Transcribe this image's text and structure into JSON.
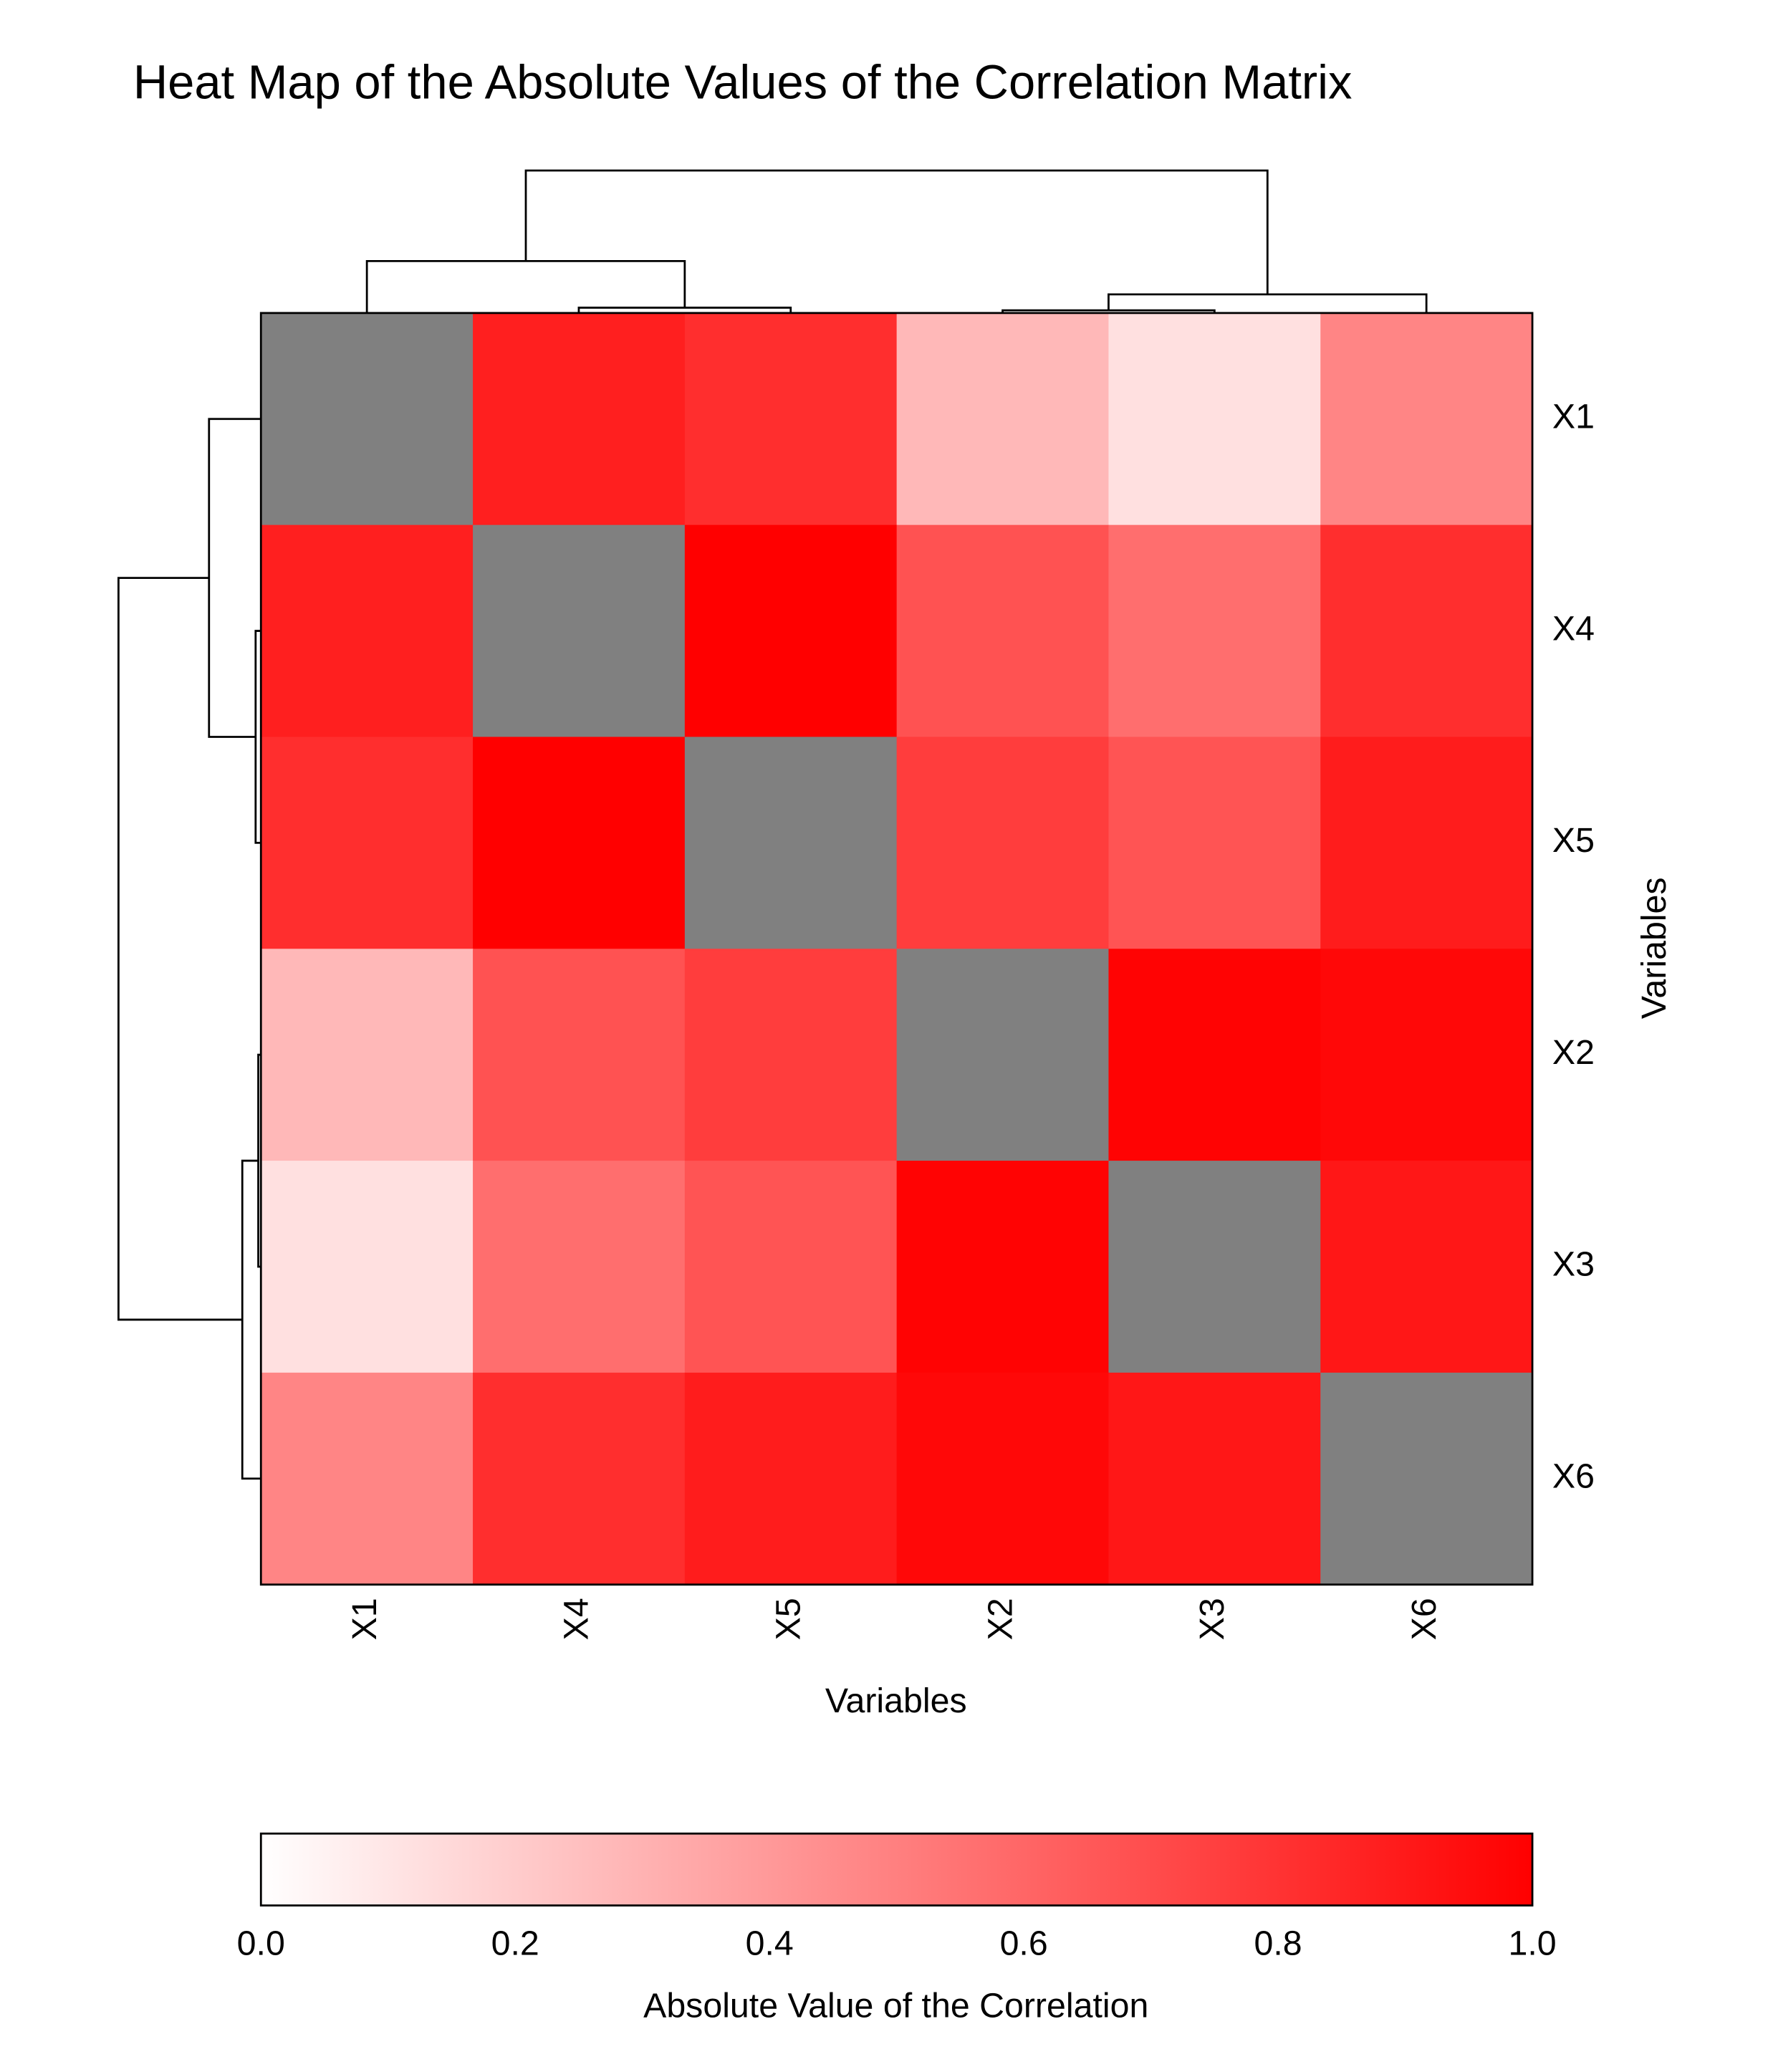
{
  "chart_data": {
    "type": "heatmap",
    "title": "Heat Map of the Absolute Values of the Correlation Matrix",
    "x_label": "Variables",
    "y_label": "Variables",
    "x_categories": [
      "X1",
      "X4",
      "X5",
      "X2",
      "X3",
      "X6"
    ],
    "y_categories": [
      "X1",
      "X4",
      "X5",
      "X2",
      "X3",
      "X6"
    ],
    "values": [
      [
        null,
        0.88,
        0.82,
        0.28,
        0.12,
        0.48
      ],
      [
        0.88,
        null,
        1.0,
        0.68,
        0.57,
        0.82
      ],
      [
        0.82,
        1.0,
        null,
        0.76,
        0.67,
        0.89
      ],
      [
        0.28,
        0.68,
        0.76,
        null,
        0.99,
        0.97
      ],
      [
        0.12,
        0.57,
        0.67,
        0.99,
        null,
        0.91
      ],
      [
        0.48,
        0.82,
        0.89,
        0.97,
        0.91,
        null
      ]
    ],
    "low_color": "#ffffff",
    "high_color": "#ff0000",
    "na_color": "#808080",
    "colorbar": {
      "title": "Absolute Value of the Correlation",
      "lim": [
        0,
        1
      ],
      "ticks": [
        {
          "value": 0,
          "label": "0.0"
        },
        0.2,
        0.4,
        0.6,
        0.8,
        {
          "value": 1,
          "label": "1.0"
        }
      ]
    }
  }
}
